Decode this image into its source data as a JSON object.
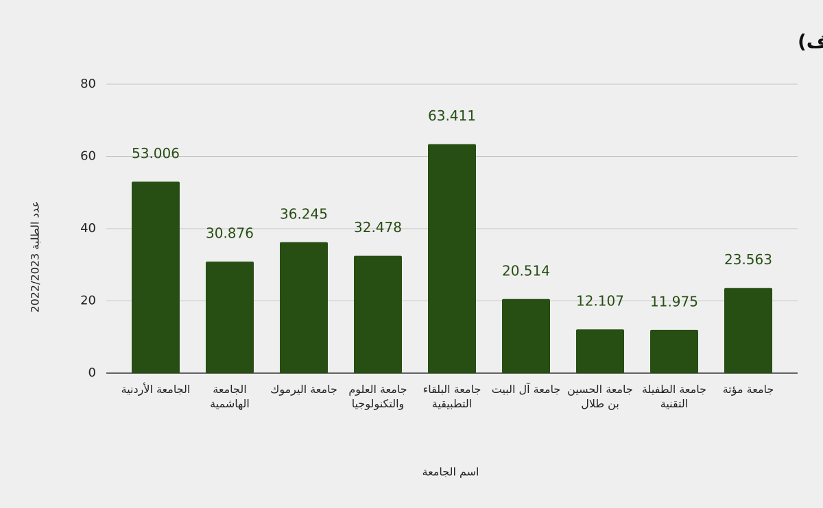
{
  "chart_data": {
    "type": "bar",
    "title": "أعداد الطلبة في الجامعات الحكومية (بالآلاف)",
    "x_label": "اسم الجامعة",
    "y_label": "عدد الطلبة 2022/2023",
    "categories": [
      "الجامعة الأردنية",
      "الجامعة الهاشمية",
      "جامعة اليرموك",
      "جامعة العلوم والتكنولوجيا",
      "جامعة البلقاء التطبيقية",
      "جامعة آل البيت",
      "جامعة الحسين بن طلال",
      "جامعة الطفيلة التقنية",
      "جامعة مؤتة"
    ],
    "values": [
      53.006,
      30.876,
      36.245,
      32.478,
      63.411,
      20.514,
      12.107,
      11.975,
      23.563
    ],
    "color": "#274e13",
    "ylim": [
      0,
      80
    ],
    "yticks": [
      0,
      20,
      40,
      60,
      80
    ],
    "grid": true
  }
}
